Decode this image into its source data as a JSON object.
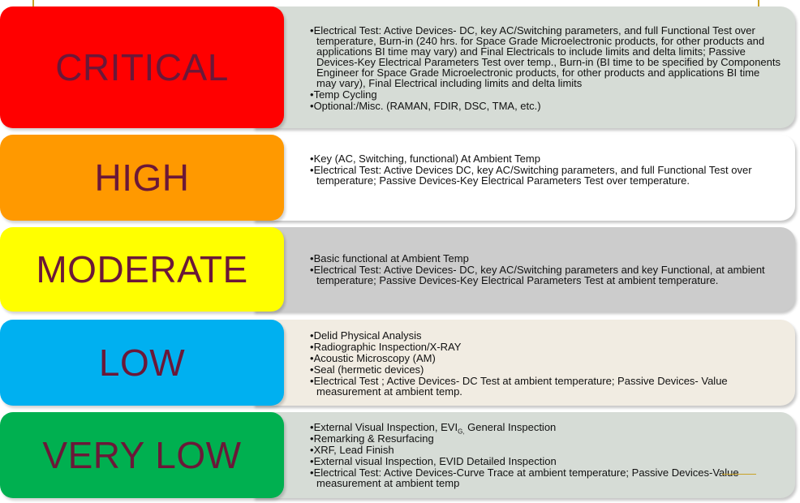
{
  "colors": {
    "critical": "#ff0000",
    "high": "#ff9900",
    "moderate": "#ffff00",
    "low": "#00b0f0",
    "very_low": "#00b050",
    "label_text": "#6b1838"
  },
  "rows": [
    {
      "label": "CRITICAL",
      "items": [
        "Electrical Test: Active Devices- DC, key AC/Switching parameters, and full Functional Test over temperature, Burn-in (240 hrs. for Space Grade Microelectronic products, for other products and applications BI time may vary) and Final Electricals to include limits and delta limits; Passive Devices-Key Electrical Parameters Test over temp., Burn-in (BI time to be specified by  Components Engineer for Space Grade Microelectronic products, for other products and applications BI time may vary), Final Electrical including limits and delta limits",
        "Temp Cycling",
        "Optional:/Misc. (RAMAN, FDIR, DSC, TMA, etc.)"
      ]
    },
    {
      "label": "HIGH",
      "items": [
        "Key (AC, Switching, functional) At Ambient Temp",
        "Electrical Test: Active Devices DC, key AC/Switching parameters, and full Functional Test over temperature; Passive Devices-Key Electrical Parameters Test over temperature."
      ]
    },
    {
      "label": "MODERATE",
      "items": [
        "Basic functional at Ambient Temp",
        "Electrical Test: Active Devices- DC, key AC/Switching parameters and key Functional, at ambient temperature; Passive Devices-Key Electrical Parameters Test at ambient temperature."
      ]
    },
    {
      "label": "LOW",
      "items": [
        "Delid Physical Analysis",
        "Radiographic Inspection/X-RAY",
        "Acoustic Microscopy (AM)",
        "Seal (hermetic devices)",
        "Electrical Test ; Active Devices- DC Test at ambient temperature; Passive Devices- Value measurement at ambient temp."
      ]
    },
    {
      "label": "VERY LOW",
      "evi_prefix": "External Visual Inspection, EVI",
      "evi_sub": "G,",
      "evi_suffix": " General Inspection",
      "items": [
        "Remarking & Resurfacing",
        "XRF, Lead Finish",
        "External visual Inspection, EVID Detailed Inspection",
        "Electrical Test: Active Devices-Curve Trace at ambient temperature; Passive Devices-Value measurement at ambient temp"
      ]
    }
  ]
}
